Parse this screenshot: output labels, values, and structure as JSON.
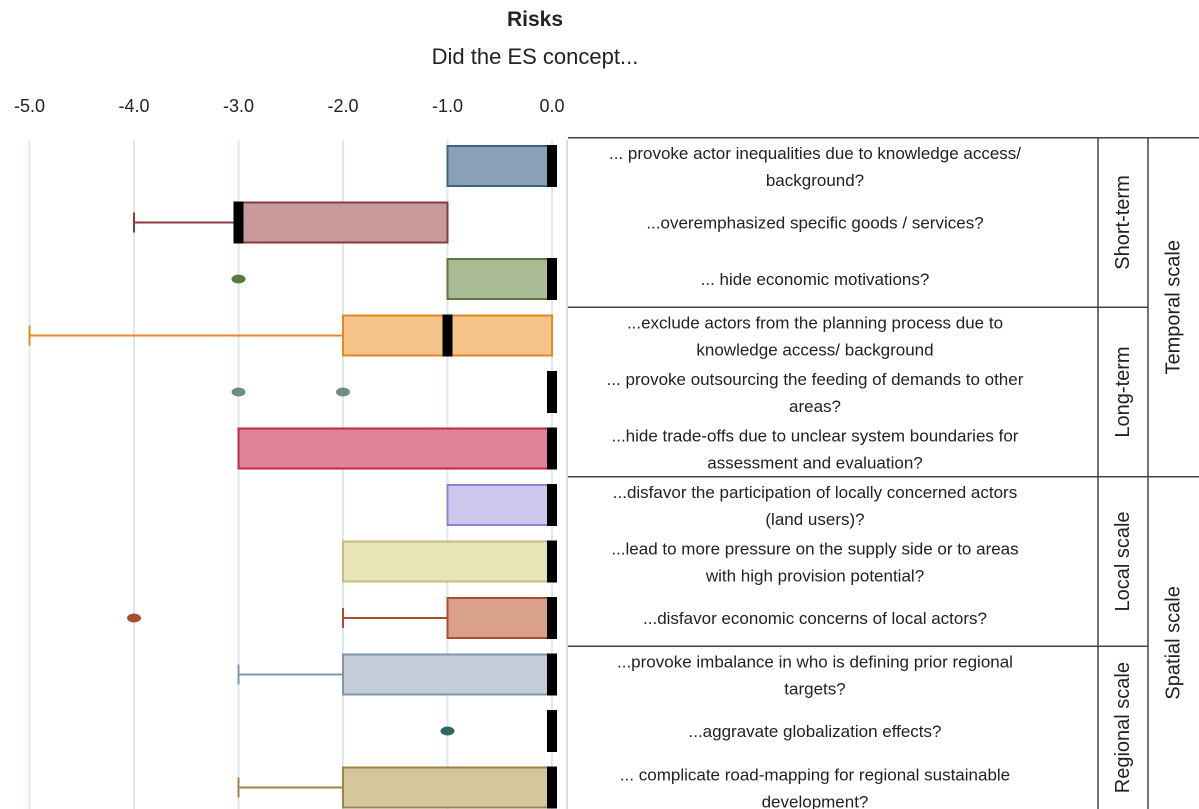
{
  "chart_data": {
    "type": "box",
    "title": "Risks",
    "subtitle": "Did the ES concept...",
    "x_ticks": [
      -5.0,
      -4.0,
      -3.0,
      -2.0,
      -1.0,
      0.0
    ],
    "x_tick_labels": [
      "-5.0",
      "-4.0",
      "-3.0",
      "-2.0",
      "-1.0",
      "0.0"
    ],
    "xlim": [
      -5.0,
      0.0
    ],
    "grid": "vertical",
    "items": [
      {
        "label_lines": [
          "... provoke actor inequalities due to knowledge access/",
          "background?"
        ],
        "q1": -1.0,
        "median": 0.0,
        "q3": 0.0,
        "whisker_low": null,
        "outliers": [],
        "color": "#8a9fb8",
        "edge": "#44607f"
      },
      {
        "label_lines": [
          "...overemphasized specific goods / services?"
        ],
        "q1": -3.0,
        "median": -3.0,
        "q3": -1.0,
        "whisker_low": -4.0,
        "outliers": [],
        "color": "#c99a9c",
        "edge": "#8b3a3e"
      },
      {
        "label_lines": [
          "... hide economic motivations?"
        ],
        "q1": -1.0,
        "median": 0.0,
        "q3": 0.0,
        "whisker_low": null,
        "outliers": [
          -3.0
        ],
        "color": "#a9bb92",
        "edge": "#5a7a3c"
      },
      {
        "label_lines": [
          "...exclude actors from the planning process due to",
          "knowledge access/ background"
        ],
        "q1": -2.0,
        "median": -1.0,
        "q3": 0.0,
        "whisker_low": -5.0,
        "outliers": [],
        "color": "#f5c38a",
        "edge": "#e08a20"
      },
      {
        "label_lines": [
          "... provoke outsourcing the feeding of demands to other",
          "areas?"
        ],
        "q1": 0.0,
        "median": 0.0,
        "q3": 0.0,
        "whisker_low": null,
        "outliers": [
          -3.0,
          -2.0
        ],
        "color": "#9aaea8",
        "edge": "#6e8c86"
      },
      {
        "label_lines": [
          "...hide trade-offs due to unclear system boundaries for",
          "assessment and evaluation?"
        ],
        "q1": -3.0,
        "median": 0.0,
        "q3": 0.0,
        "whisker_low": null,
        "outliers": [],
        "color": "#e08396",
        "edge": "#c0284a"
      },
      {
        "label_lines": [
          "...disfavor the participation of locally concerned actors",
          "(land users)?"
        ],
        "q1": -1.0,
        "median": 0.0,
        "q3": 0.0,
        "whisker_low": null,
        "outliers": [],
        "color": "#cfc7ee",
        "edge": "#8f82d4"
      },
      {
        "label_lines": [
          "...lead to more pressure on the supply side or to areas",
          "with high provision potential?"
        ],
        "q1": -2.0,
        "median": 0.0,
        "q3": 0.0,
        "whisker_low": null,
        "outliers": [],
        "color": "#e8e4b8",
        "edge": "#c4bd80"
      },
      {
        "label_lines": [
          "...disfavor economic concerns of local actors?"
        ],
        "q1": -1.0,
        "median": 0.0,
        "q3": 0.0,
        "whisker_low": -2.0,
        "outliers": [
          -4.0
        ],
        "color": "#d9a08c",
        "edge": "#a8502e"
      },
      {
        "label_lines": [
          "...provoke imbalance in who is defining prior regional",
          "targets?"
        ],
        "q1": -2.0,
        "median": 0.0,
        "q3": 0.0,
        "whisker_low": -3.0,
        "outliers": [],
        "color": "#c3cdd8",
        "edge": "#7d95ad"
      },
      {
        "label_lines": [
          "...aggravate globalization effects?"
        ],
        "q1": 0.0,
        "median": 0.0,
        "q3": 0.0,
        "whisker_low": null,
        "outliers": [
          -1.0
        ],
        "color": "#3a8078",
        "edge": "#2a6a62"
      },
      {
        "label_lines": [
          "... complicate road-mapping for regional sustainable",
          "development?"
        ],
        "q1": -2.0,
        "median": 0.0,
        "q3": 0.0,
        "whisker_low": -3.0,
        "outliers": [],
        "color": "#d5c79c",
        "edge": "#9b8445"
      }
    ],
    "inner_groups": [
      {
        "name": "Short-term",
        "first": 0,
        "last": 2
      },
      {
        "name": "Long-term",
        "first": 3,
        "last": 5
      },
      {
        "name": "Local scale",
        "first": 6,
        "last": 8
      },
      {
        "name": "Regional scale",
        "first": 9,
        "last": 11
      }
    ],
    "outer_groups": [
      {
        "name": "Temporal scale",
        "first": 0,
        "last": 5
      },
      {
        "name": "Spatial scale",
        "first": 6,
        "last": 11
      }
    ]
  }
}
